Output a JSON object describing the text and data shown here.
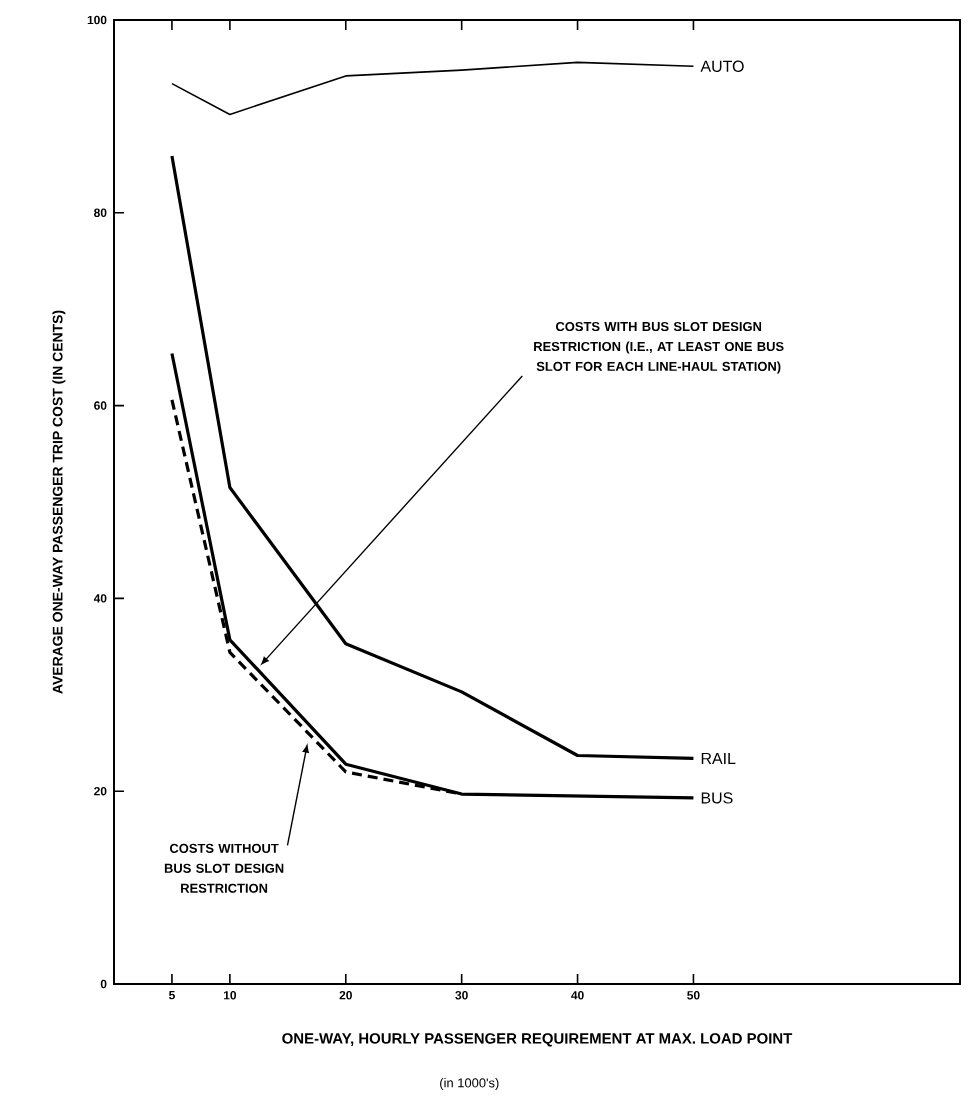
{
  "chart_data": {
    "type": "line",
    "xlabel": "ONE-WAY, HOURLY PASSENGER REQUIREMENT AT MAX. LOAD POINT",
    "ylabel": "AVERAGE ONE-WAY PASSENGER TRIP COST (IN CENTS)",
    "xlim": [
      0,
      73
    ],
    "ylim": [
      0,
      100
    ],
    "xticks": [
      5,
      10,
      20,
      30,
      40,
      50
    ],
    "yticks": [
      0,
      20,
      40,
      60,
      80,
      100
    ],
    "grid": false,
    "series": [
      {
        "name": "AUTO",
        "color": "#000000",
        "x": [
          5,
          10,
          20,
          30,
          40,
          50
        ],
        "values": [
          93.4,
          90.2,
          94.2,
          94.8,
          95.6,
          95.2
        ],
        "line_style": "solid"
      },
      {
        "name": "RAIL",
        "color": "#000000",
        "x": [
          5,
          10,
          20,
          30,
          40,
          50
        ],
        "values": [
          85.9,
          51.5,
          35.3,
          30.3,
          23.7,
          23.4
        ],
        "line_style": "solid"
      },
      {
        "name": "BUS",
        "color": "#000000",
        "x": [
          5,
          10,
          20,
          30,
          50
        ],
        "values": [
          65.4,
          35.7,
          22.8,
          19.7,
          19.3
        ],
        "line_style": "solid"
      },
      {
        "color": "#000000",
        "x": [
          5,
          10,
          20,
          30
        ],
        "values": [
          60.6,
          34.4,
          22.0,
          19.7
        ],
        "line_style": "dashed"
      }
    ],
    "annotations": [
      {
        "text": "COSTS WITH BUS SLOT DESIGN RESTRICTION (I.E., AT LEAST ONE BUS SLOT FOR EACH LINE-HAUL STATION)",
        "x": 12.6,
        "y": 33
      },
      {
        "text": "COSTS WITHOUT BUS SLOT DESIGN RESTRICTION",
        "x": 16.7,
        "y": 25
      },
      "(in 1000's)"
    ]
  }
}
